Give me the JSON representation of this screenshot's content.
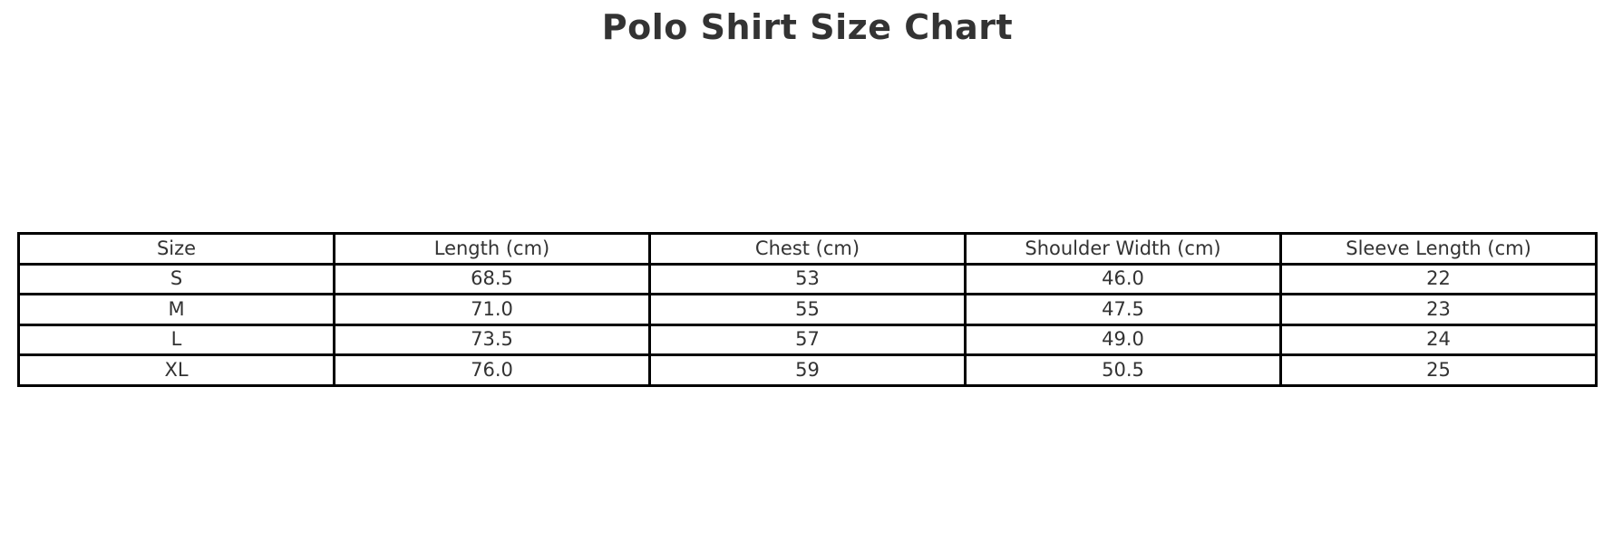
{
  "title": "Polo Shirt Size Chart",
  "colors": {
    "background": "#ffffff",
    "text": "#333333",
    "border": "#000000"
  },
  "chart_data": {
    "type": "table",
    "title": "Polo Shirt Size Chart",
    "columns": [
      "Size",
      "Length (cm)",
      "Chest (cm)",
      "Shoulder Width (cm)",
      "Sleeve Length (cm)"
    ],
    "rows": [
      [
        "S",
        "68.5",
        "53",
        "46.0",
        "22"
      ],
      [
        "M",
        "71.0",
        "55",
        "47.5",
        "23"
      ],
      [
        "L",
        "73.5",
        "57",
        "49.0",
        "24"
      ],
      [
        "XL",
        "76.0",
        "59",
        "50.5",
        "25"
      ]
    ],
    "layout": {
      "columns_equal_width": true,
      "header_row": true,
      "grid": "all-borders"
    }
  }
}
